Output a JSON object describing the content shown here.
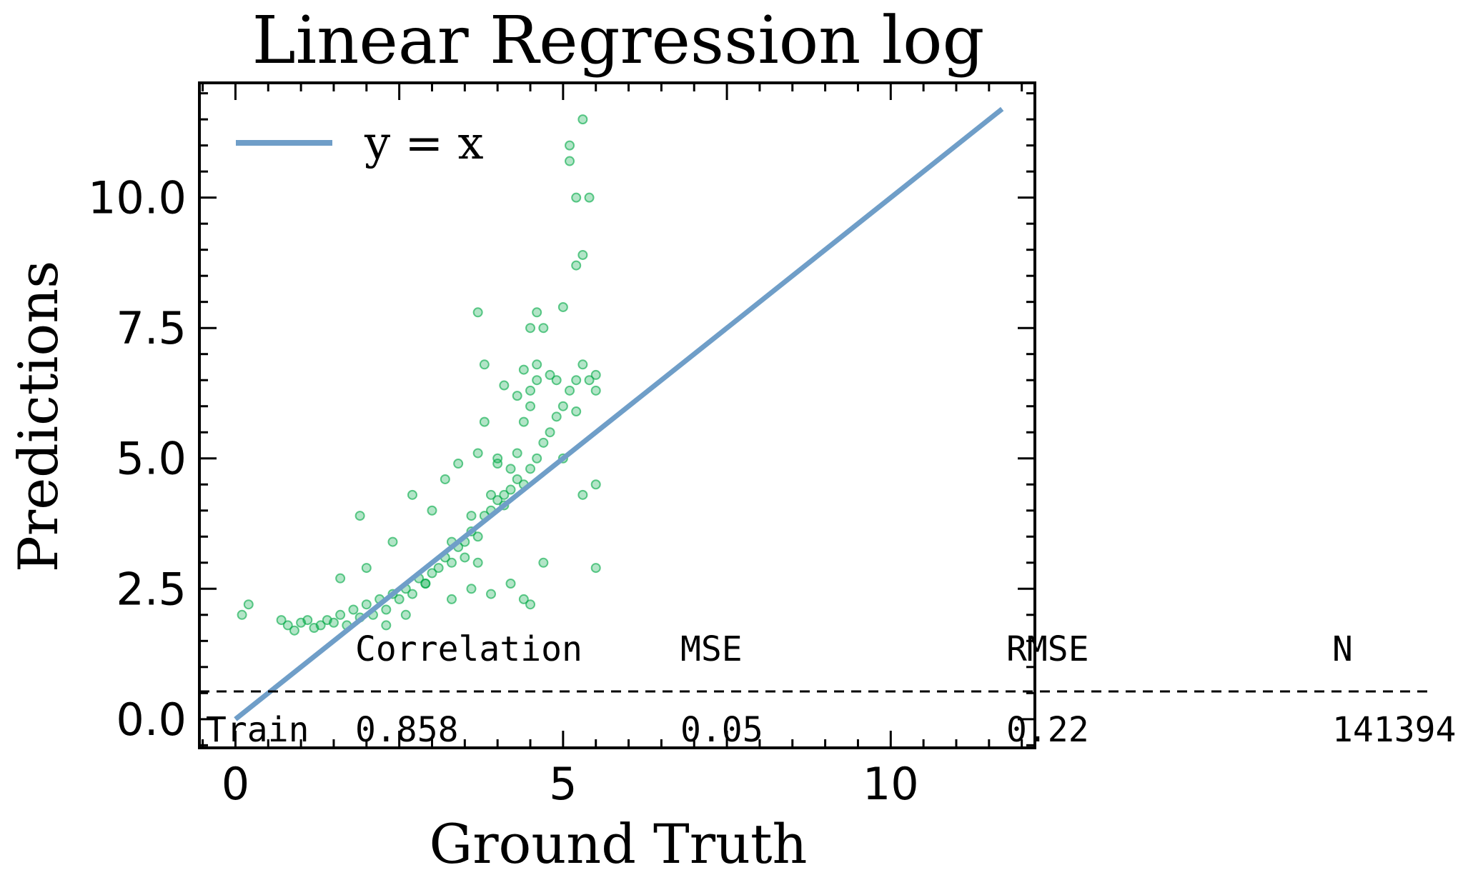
{
  "chart_data": {
    "type": "scatter",
    "title": "Linear Regression log",
    "xlabel": "Ground Truth",
    "ylabel": "Predictions",
    "xlim": [
      -0.55,
      12.2
    ],
    "ylim": [
      -0.55,
      12.2
    ],
    "x_ticks": [
      0,
      5,
      10
    ],
    "x_tick_labels": [
      "0",
      "5",
      "10"
    ],
    "y_ticks": [
      0.0,
      2.5,
      5.0,
      7.5,
      10.0
    ],
    "y_tick_labels": [
      "0.0",
      "2.5",
      "5.0",
      "7.5",
      "10.0"
    ],
    "grid": false,
    "legend": {
      "position": "top-left",
      "entries": [
        "y = x"
      ]
    },
    "colors": {
      "points": "#00a844",
      "line": "#6f9ec8",
      "axes": "#000000"
    },
    "reference_line": {
      "label": "y = x",
      "from": [
        0,
        0
      ],
      "to": [
        11.7,
        11.7
      ]
    },
    "series": [
      {
        "points": [
          [
            0.1,
            2.0
          ],
          [
            0.2,
            2.2
          ],
          [
            0.7,
            1.9
          ],
          [
            0.8,
            1.8
          ],
          [
            0.9,
            1.7
          ],
          [
            1.0,
            1.85
          ],
          [
            1.1,
            1.9
          ],
          [
            1.2,
            1.75
          ],
          [
            1.3,
            1.8
          ],
          [
            1.4,
            1.9
          ],
          [
            1.5,
            1.85
          ],
          [
            1.6,
            2.0
          ],
          [
            1.7,
            1.8
          ],
          [
            1.8,
            2.1
          ],
          [
            1.9,
            1.95
          ],
          [
            2.0,
            2.2
          ],
          [
            2.1,
            2.0
          ],
          [
            2.2,
            2.3
          ],
          [
            2.3,
            2.1
          ],
          [
            2.4,
            2.4
          ],
          [
            2.5,
            2.3
          ],
          [
            2.6,
            2.5
          ],
          [
            2.7,
            2.4
          ],
          [
            2.8,
            2.7
          ],
          [
            2.9,
            2.6
          ],
          [
            3.0,
            2.8
          ],
          [
            3.1,
            2.9
          ],
          [
            3.2,
            3.1
          ],
          [
            3.3,
            3.0
          ],
          [
            3.4,
            3.3
          ],
          [
            3.5,
            3.4
          ],
          [
            3.6,
            3.6
          ],
          [
            3.7,
            3.5
          ],
          [
            3.8,
            3.9
          ],
          [
            3.9,
            4.0
          ],
          [
            4.0,
            4.2
          ],
          [
            4.1,
            4.1
          ],
          [
            4.2,
            4.4
          ],
          [
            4.3,
            4.6
          ],
          [
            4.4,
            4.5
          ],
          [
            4.5,
            4.8
          ],
          [
            4.6,
            5.0
          ],
          [
            4.7,
            5.3
          ],
          [
            4.8,
            5.5
          ],
          [
            4.9,
            5.8
          ],
          [
            5.0,
            6.0
          ],
          [
            5.1,
            6.3
          ],
          [
            5.2,
            6.5
          ],
          [
            5.3,
            6.8
          ],
          [
            1.6,
            2.7
          ],
          [
            1.9,
            3.9
          ],
          [
            2.0,
            2.9
          ],
          [
            2.4,
            3.4
          ],
          [
            2.7,
            4.3
          ],
          [
            3.0,
            4.0
          ],
          [
            3.2,
            4.6
          ],
          [
            3.4,
            4.9
          ],
          [
            3.7,
            5.1
          ],
          [
            3.8,
            5.7
          ],
          [
            3.9,
            4.3
          ],
          [
            4.0,
            5.0
          ],
          [
            4.1,
            4.3
          ],
          [
            4.2,
            4.8
          ],
          [
            4.3,
            5.1
          ],
          [
            4.4,
            5.7
          ],
          [
            4.5,
            6.0
          ],
          [
            4.5,
            6.3
          ],
          [
            4.6,
            6.5
          ],
          [
            4.6,
            6.8
          ],
          [
            4.8,
            6.6
          ],
          [
            5.0,
            5.0
          ],
          [
            5.3,
            4.3
          ],
          [
            5.5,
            4.5
          ],
          [
            5.5,
            2.9
          ],
          [
            2.3,
            1.8
          ],
          [
            2.6,
            2.0
          ],
          [
            3.3,
            2.3
          ],
          [
            3.6,
            2.5
          ],
          [
            3.9,
            2.4
          ],
          [
            4.2,
            2.6
          ],
          [
            4.5,
            2.2
          ],
          [
            4.4,
            2.3
          ],
          [
            4.7,
            3.0
          ],
          [
            3.7,
            7.8
          ],
          [
            4.5,
            7.5
          ],
          [
            4.6,
            7.8
          ],
          [
            4.7,
            7.5
          ],
          [
            5.0,
            7.9
          ],
          [
            5.2,
            8.7
          ],
          [
            5.3,
            8.9
          ],
          [
            5.2,
            10.0
          ],
          [
            5.4,
            10.0
          ],
          [
            5.1,
            10.7
          ],
          [
            5.1,
            11.0
          ],
          [
            5.3,
            11.5
          ],
          [
            4.4,
            6.7
          ],
          [
            4.3,
            6.2
          ],
          [
            4.1,
            6.4
          ],
          [
            3.8,
            6.8
          ],
          [
            5.5,
            6.3
          ],
          [
            5.5,
            6.6
          ],
          [
            5.4,
            6.5
          ],
          [
            5.2,
            5.9
          ],
          [
            4.9,
            6.5
          ],
          [
            4.0,
            4.9
          ],
          [
            3.7,
            3.0
          ],
          [
            3.3,
            3.4
          ],
          [
            2.9,
            2.6
          ],
          [
            3.5,
            3.1
          ],
          [
            3.6,
            3.9
          ]
        ]
      }
    ],
    "stats_table": {
      "columns": [
        "",
        "Correlation",
        "MSE",
        "RMSE",
        "N"
      ],
      "rows": [
        [
          "Train",
          "0.858",
          "0.05",
          "0.22",
          "141394"
        ]
      ]
    }
  }
}
